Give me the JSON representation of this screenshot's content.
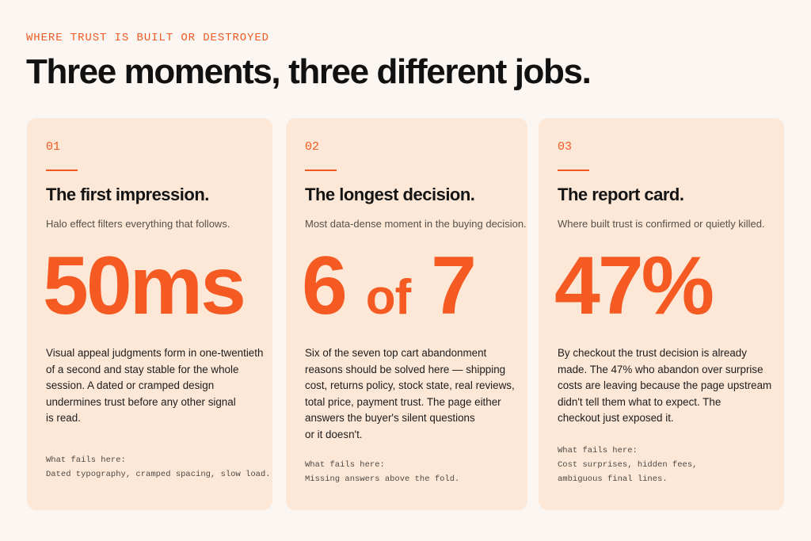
{
  "header": {
    "eyebrow": "WHERE TRUST IS BUILT OR DESTROYED",
    "title": "Three moments, three different jobs."
  },
  "colors": {
    "accent": "#f05a22",
    "card_background": "#fde8d8",
    "page_background": "#fbf6f1"
  },
  "cards": [
    {
      "number": "01",
      "title": "The first impression.",
      "subtitle": "Halo effect filters everything that follows.",
      "stat_main": "50ms",
      "stat_small": "",
      "stat_tail": "",
      "body_lines": [
        "Visual appeal judgments form in one-twentieth",
        "of a second and stay stable for the whole",
        "session. A dated or cramped design",
        "undermines trust before any other signal",
        "is read."
      ],
      "fails_lines": [
        "What fails here:",
        "Dated typography, cramped spacing, slow load."
      ]
    },
    {
      "number": "02",
      "title": "The longest decision.",
      "subtitle": "Most data-dense moment in the buying decision.",
      "stat_main": "6 ",
      "stat_small": "of",
      "stat_tail": " 7",
      "body_lines": [
        "Six of the seven top cart abandonment",
        "reasons should be solved here — shipping",
        "cost, returns policy, stock state, real reviews,",
        "total price, payment trust. The page either",
        "answers the buyer's silent questions",
        "or it doesn't."
      ],
      "fails_lines": [
        "What fails here:",
        "Missing answers above the fold."
      ]
    },
    {
      "number": "03",
      "title": "The report card.",
      "subtitle": "Where built trust is confirmed or quietly killed.",
      "stat_main": "47%",
      "stat_small": "",
      "stat_tail": "",
      "body_lines": [
        "By checkout the trust decision is already",
        "made. The 47% who abandon over surprise",
        "costs are leaving because the page upstream",
        "didn't tell them what to expect. The",
        "checkout just exposed it."
      ],
      "fails_lines": [
        "What fails here:",
        "Cost surprises, hidden fees,",
        "ambiguous final lines."
      ]
    }
  ]
}
